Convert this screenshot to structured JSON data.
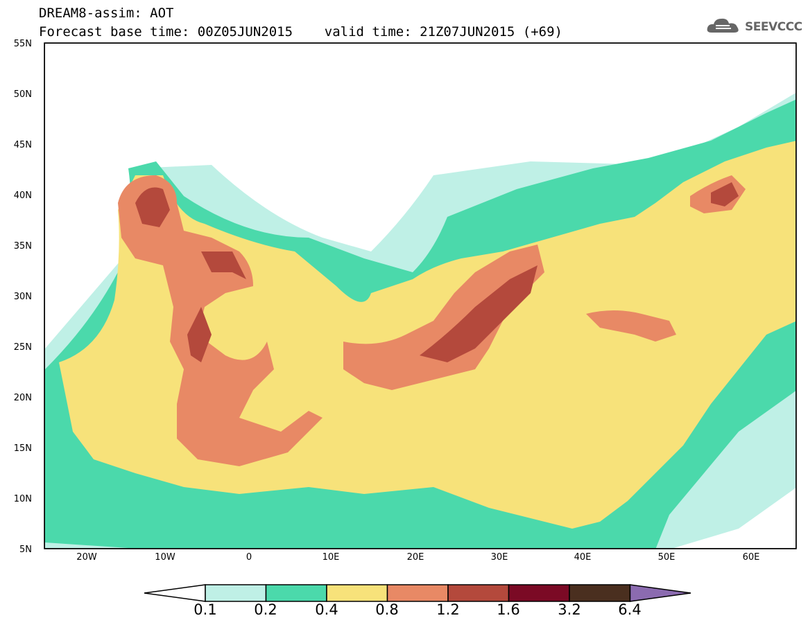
{
  "header": {
    "line1": "DREAM8-assim: AOT",
    "line2": "Forecast base time: 00Z05JUN2015    valid time: 21Z07JUN2015 (+69)"
  },
  "logo": {
    "text": "SEEVCCC",
    "icon": "cloud-icon",
    "color": "#666666"
  },
  "map": {
    "lon_range": [
      -25,
      65
    ],
    "lat_range": [
      5,
      55
    ],
    "lat_ticks": [
      "55N",
      "50N",
      "45N",
      "40N",
      "35N",
      "30N",
      "25N",
      "20N",
      "15N",
      "10N",
      "5N"
    ],
    "lon_ticks": [
      "20W",
      "10W",
      "0",
      "10E",
      "20E",
      "30E",
      "40E",
      "50E",
      "60E"
    ]
  },
  "legend": {
    "labels": [
      "0.1",
      "0.2",
      "0.4",
      "0.8",
      "1.2",
      "1.6",
      "3.2",
      "6.4"
    ],
    "colors": [
      "#ffffff",
      "#bff0e6",
      "#4bd9ab",
      "#f7e27a",
      "#e88965",
      "#b4493c",
      "#7b0a25",
      "#4a2f1f",
      "#8b6bb0"
    ]
  }
}
